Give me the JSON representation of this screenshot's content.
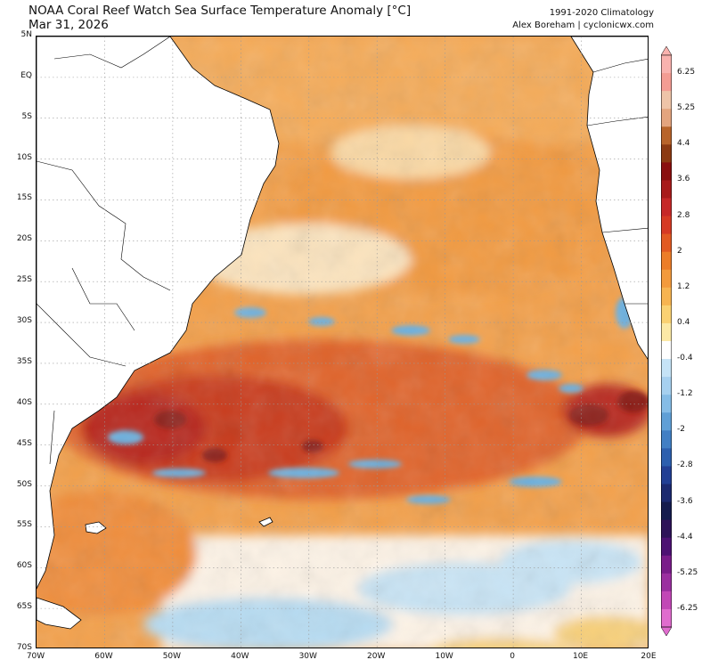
{
  "header": {
    "title": "NOAA Coral Reef Watch Sea Surface Temperature Anomaly [°C]",
    "date": "Mar 31, 2026",
    "climatology": "1991-2020 Climatology",
    "credit": "Alex Boreham | cyclonicwx.com"
  },
  "map": {
    "region": "South Atlantic",
    "lon_range": [
      -70,
      20
    ],
    "lat_range": [
      -70,
      5
    ],
    "lat_ticks": [
      {
        "label": "5N",
        "lat": 5
      },
      {
        "label": "EQ",
        "lat": 0
      },
      {
        "label": "5S",
        "lat": -5
      },
      {
        "label": "10S",
        "lat": -10
      },
      {
        "label": "15S",
        "lat": -15
      },
      {
        "label": "20S",
        "lat": -20
      },
      {
        "label": "25S",
        "lat": -25
      },
      {
        "label": "30S",
        "lat": -30
      },
      {
        "label": "35S",
        "lat": -35
      },
      {
        "label": "40S",
        "lat": -40
      },
      {
        "label": "45S",
        "lat": -45
      },
      {
        "label": "50S",
        "lat": -50
      },
      {
        "label": "55S",
        "lat": -55
      },
      {
        "label": "60S",
        "lat": -60
      },
      {
        "label": "65S",
        "lat": -65
      },
      {
        "label": "70S",
        "lat": -70
      }
    ],
    "lon_ticks": [
      {
        "label": "70W",
        "lon": -70
      },
      {
        "label": "60W",
        "lon": -60
      },
      {
        "label": "50W",
        "lon": -50
      },
      {
        "label": "40W",
        "lon": -40
      },
      {
        "label": "30W",
        "lon": -30
      },
      {
        "label": "20W",
        "lon": -20
      },
      {
        "label": "10W",
        "lon": -10
      },
      {
        "label": "0",
        "lon": 0
      },
      {
        "label": "10E",
        "lon": 10
      },
      {
        "label": "20E",
        "lon": 20
      }
    ],
    "gridlines": true,
    "colors": {
      "land": "#ffffff",
      "warm_light": "#f8c46a",
      "warm_mid": "#f39a3c",
      "warm_strong": "#e0642a",
      "warm_hot": "#b8281c",
      "cool_light": "#b7dcf2",
      "cool_mid": "#6ab0e0",
      "neutral": "#fdf6ee"
    }
  },
  "colorbar": {
    "ticks": [
      "6.25",
      "5.25",
      "4.4",
      "3.6",
      "2.8",
      "2",
      "1.2",
      "0.4",
      "-0.4",
      "-1.2",
      "-2",
      "-2.8",
      "-3.6",
      "-4.4",
      "-5.25",
      "-6.25"
    ],
    "colors": [
      "#f9b2ae",
      "#f49c93",
      "#eec4a8",
      "#e3a47e",
      "#b8642a",
      "#8c3a12",
      "#8a0f0f",
      "#a81b1b",
      "#c62828",
      "#d63a24",
      "#e25a22",
      "#ec7d28",
      "#f39a3c",
      "#f7b451",
      "#fad172",
      "#fce9a6",
      "#ffffff",
      "#c5e3f6",
      "#a6d0ef",
      "#85bce6",
      "#5f9fd6",
      "#417fc4",
      "#2c5fae",
      "#223f94",
      "#1c2a70",
      "#151c4e",
      "#2e1358",
      "#4d1273",
      "#7a1d8a",
      "#9b2fa0",
      "#c247b6",
      "#e06cce"
    ]
  }
}
